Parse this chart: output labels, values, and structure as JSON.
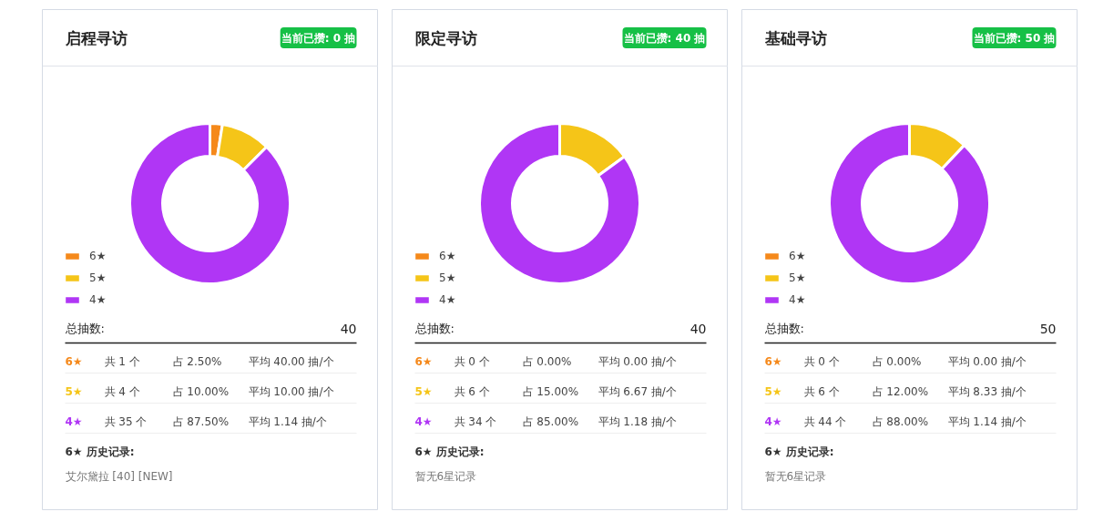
{
  "chart_data": [
    {
      "type": "donut",
      "title": "启程寻访",
      "subtitle": "当前已攒: 0 抽",
      "categories": [
        "6★",
        "5★",
        "4★"
      ],
      "values": [
        2.5,
        10,
        87.5
      ],
      "colors": [
        "#f5891b",
        "#f5c518",
        "#b036f5"
      ],
      "legend": "left",
      "annotations": [
        "总抽数:",
        "40",
        "6★",
        "共 1 个",
        "占 2.50%",
        "平均 40.00 抽/个",
        "5★",
        "共 4 个",
        "占 10.00%",
        "平均 10.00 抽/个",
        "4★",
        "共 35 个",
        "占 87.50%",
        "平均 1.14 抽/个",
        "6★ 历史记录:",
        "艾尔黛拉 [40] [NEW]"
      ]
    },
    {
      "type": "donut",
      "title": "限定寻访",
      "subtitle": "当前已攒: 40 抽",
      "categories": [
        "6★",
        "5★",
        "4★"
      ],
      "values": [
        0,
        15,
        85
      ],
      "colors": [
        "#f5891b",
        "#f5c518",
        "#b036f5"
      ],
      "legend": "left",
      "annotations": [
        "总抽数:",
        "40",
        "6★",
        "共 0 个",
        "占 0.00%",
        "平均 0.00 抽/个",
        "5★",
        "共 6 个",
        "占 15.00%",
        "平均 6.67 抽/个",
        "4★",
        "共 34 个",
        "占 85.00%",
        "平均 1.18 抽/个",
        "6★ 历史记录:",
        "暂无6星记录"
      ]
    },
    {
      "type": "donut",
      "title": "基础寻访",
      "subtitle": "当前已攒: 50 抽",
      "categories": [
        "6★",
        "5★",
        "4★"
      ],
      "values": [
        0,
        12,
        88
      ],
      "colors": [
        "#f5891b",
        "#f5c518",
        "#b036f5"
      ],
      "legend": "left",
      "annotations": [
        "总抽数:",
        "50",
        "6★",
        "共 0 个",
        "占 0.00%",
        "平均 0.00 抽/个",
        "5★",
        "共 6 个",
        "占 12.00%",
        "平均 8.33 抽/个",
        "4★",
        "共 44 个",
        "占 88.00%",
        "平均 1.14 抽/个",
        "6★ 历史记录:",
        "暂无6星记录"
      ]
    }
  ]
}
